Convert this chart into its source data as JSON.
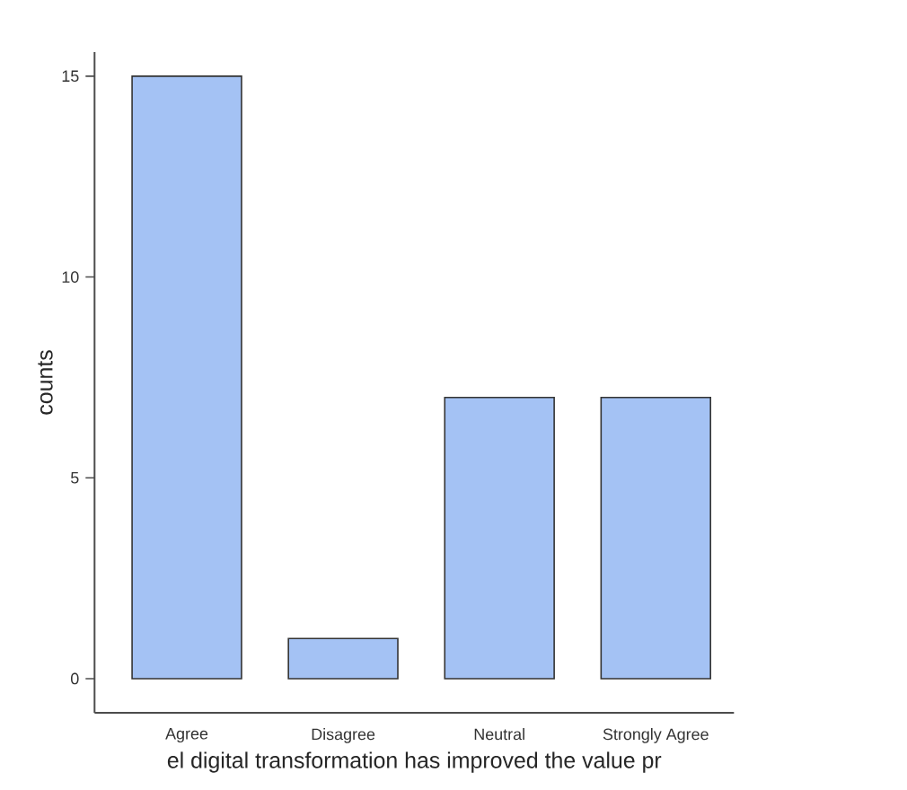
{
  "chart_data": {
    "type": "bar",
    "xlabel": "el digital transformation has improved the value pr",
    "ylabel": "counts",
    "categories": [
      "Agree",
      "Disagree",
      "Neutral",
      "Strongly Agree"
    ],
    "values": [
      15,
      1,
      7,
      7
    ],
    "color": "#a4c2f4",
    "ylim": [
      -0.85,
      15.6
    ],
    "yticks": [
      0,
      5,
      10,
      15
    ]
  }
}
